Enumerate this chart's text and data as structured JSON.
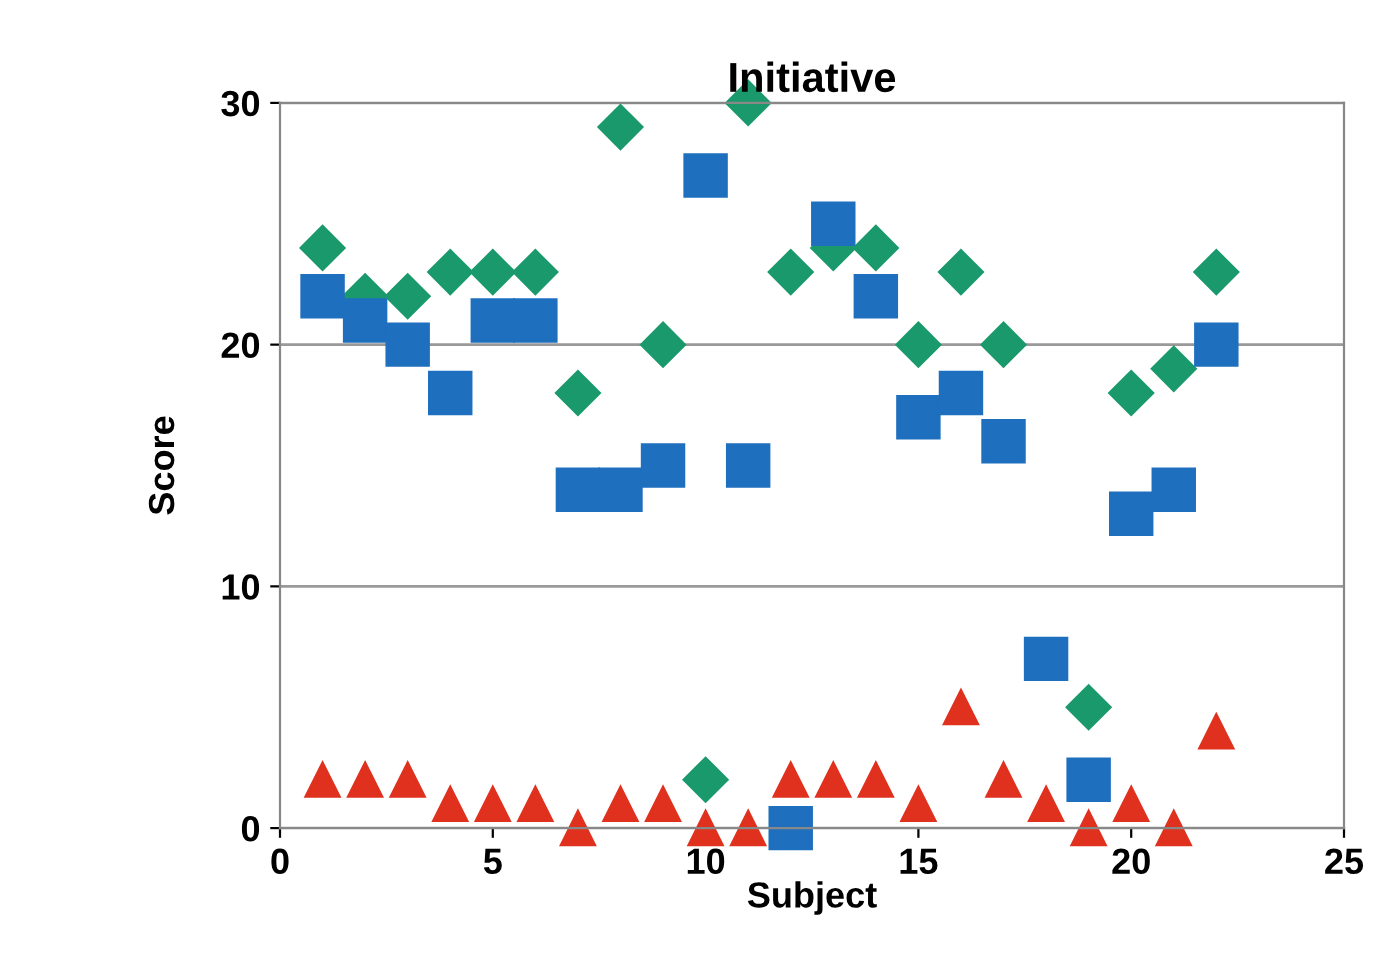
{
  "chart_data": {
    "type": "scatter",
    "title": "Initiative",
    "xlabel": "Subject",
    "ylabel": "Score",
    "x": [
      1,
      2,
      3,
      4,
      5,
      6,
      7,
      8,
      9,
      10,
      11,
      12,
      13,
      14,
      15,
      16,
      17,
      18,
      19,
      20,
      21,
      22
    ],
    "series": [
      {
        "color": "#1a9a6c",
        "marker": "diamond",
        "values": [
          24,
          22,
          22,
          23,
          23,
          23,
          18,
          29,
          20,
          2,
          30,
          23,
          24,
          24,
          20,
          23,
          20,
          null,
          5,
          18,
          19,
          23
        ]
      },
      {
        "color": "#1f6fbf",
        "marker": "square",
        "values": [
          22,
          21,
          20,
          18,
          21,
          21,
          14,
          14,
          15,
          27,
          15,
          0,
          25,
          22,
          17,
          18,
          16,
          7,
          2,
          13,
          14,
          20
        ]
      },
      {
        "color": "#e0301e",
        "marker": "triangle",
        "values": [
          2,
          2,
          2,
          1,
          1,
          1,
          0,
          1,
          1,
          0,
          0,
          2,
          2,
          2,
          1,
          5,
          2,
          1,
          0,
          1,
          0,
          4
        ]
      }
    ],
    "xlim": [
      0,
      25
    ],
    "xticks": [
      0,
      5,
      10,
      15,
      20,
      25
    ],
    "ylim": [
      0,
      30
    ],
    "yticks": [
      0,
      10,
      20,
      30
    ],
    "grid": "y",
    "legend": false
  }
}
